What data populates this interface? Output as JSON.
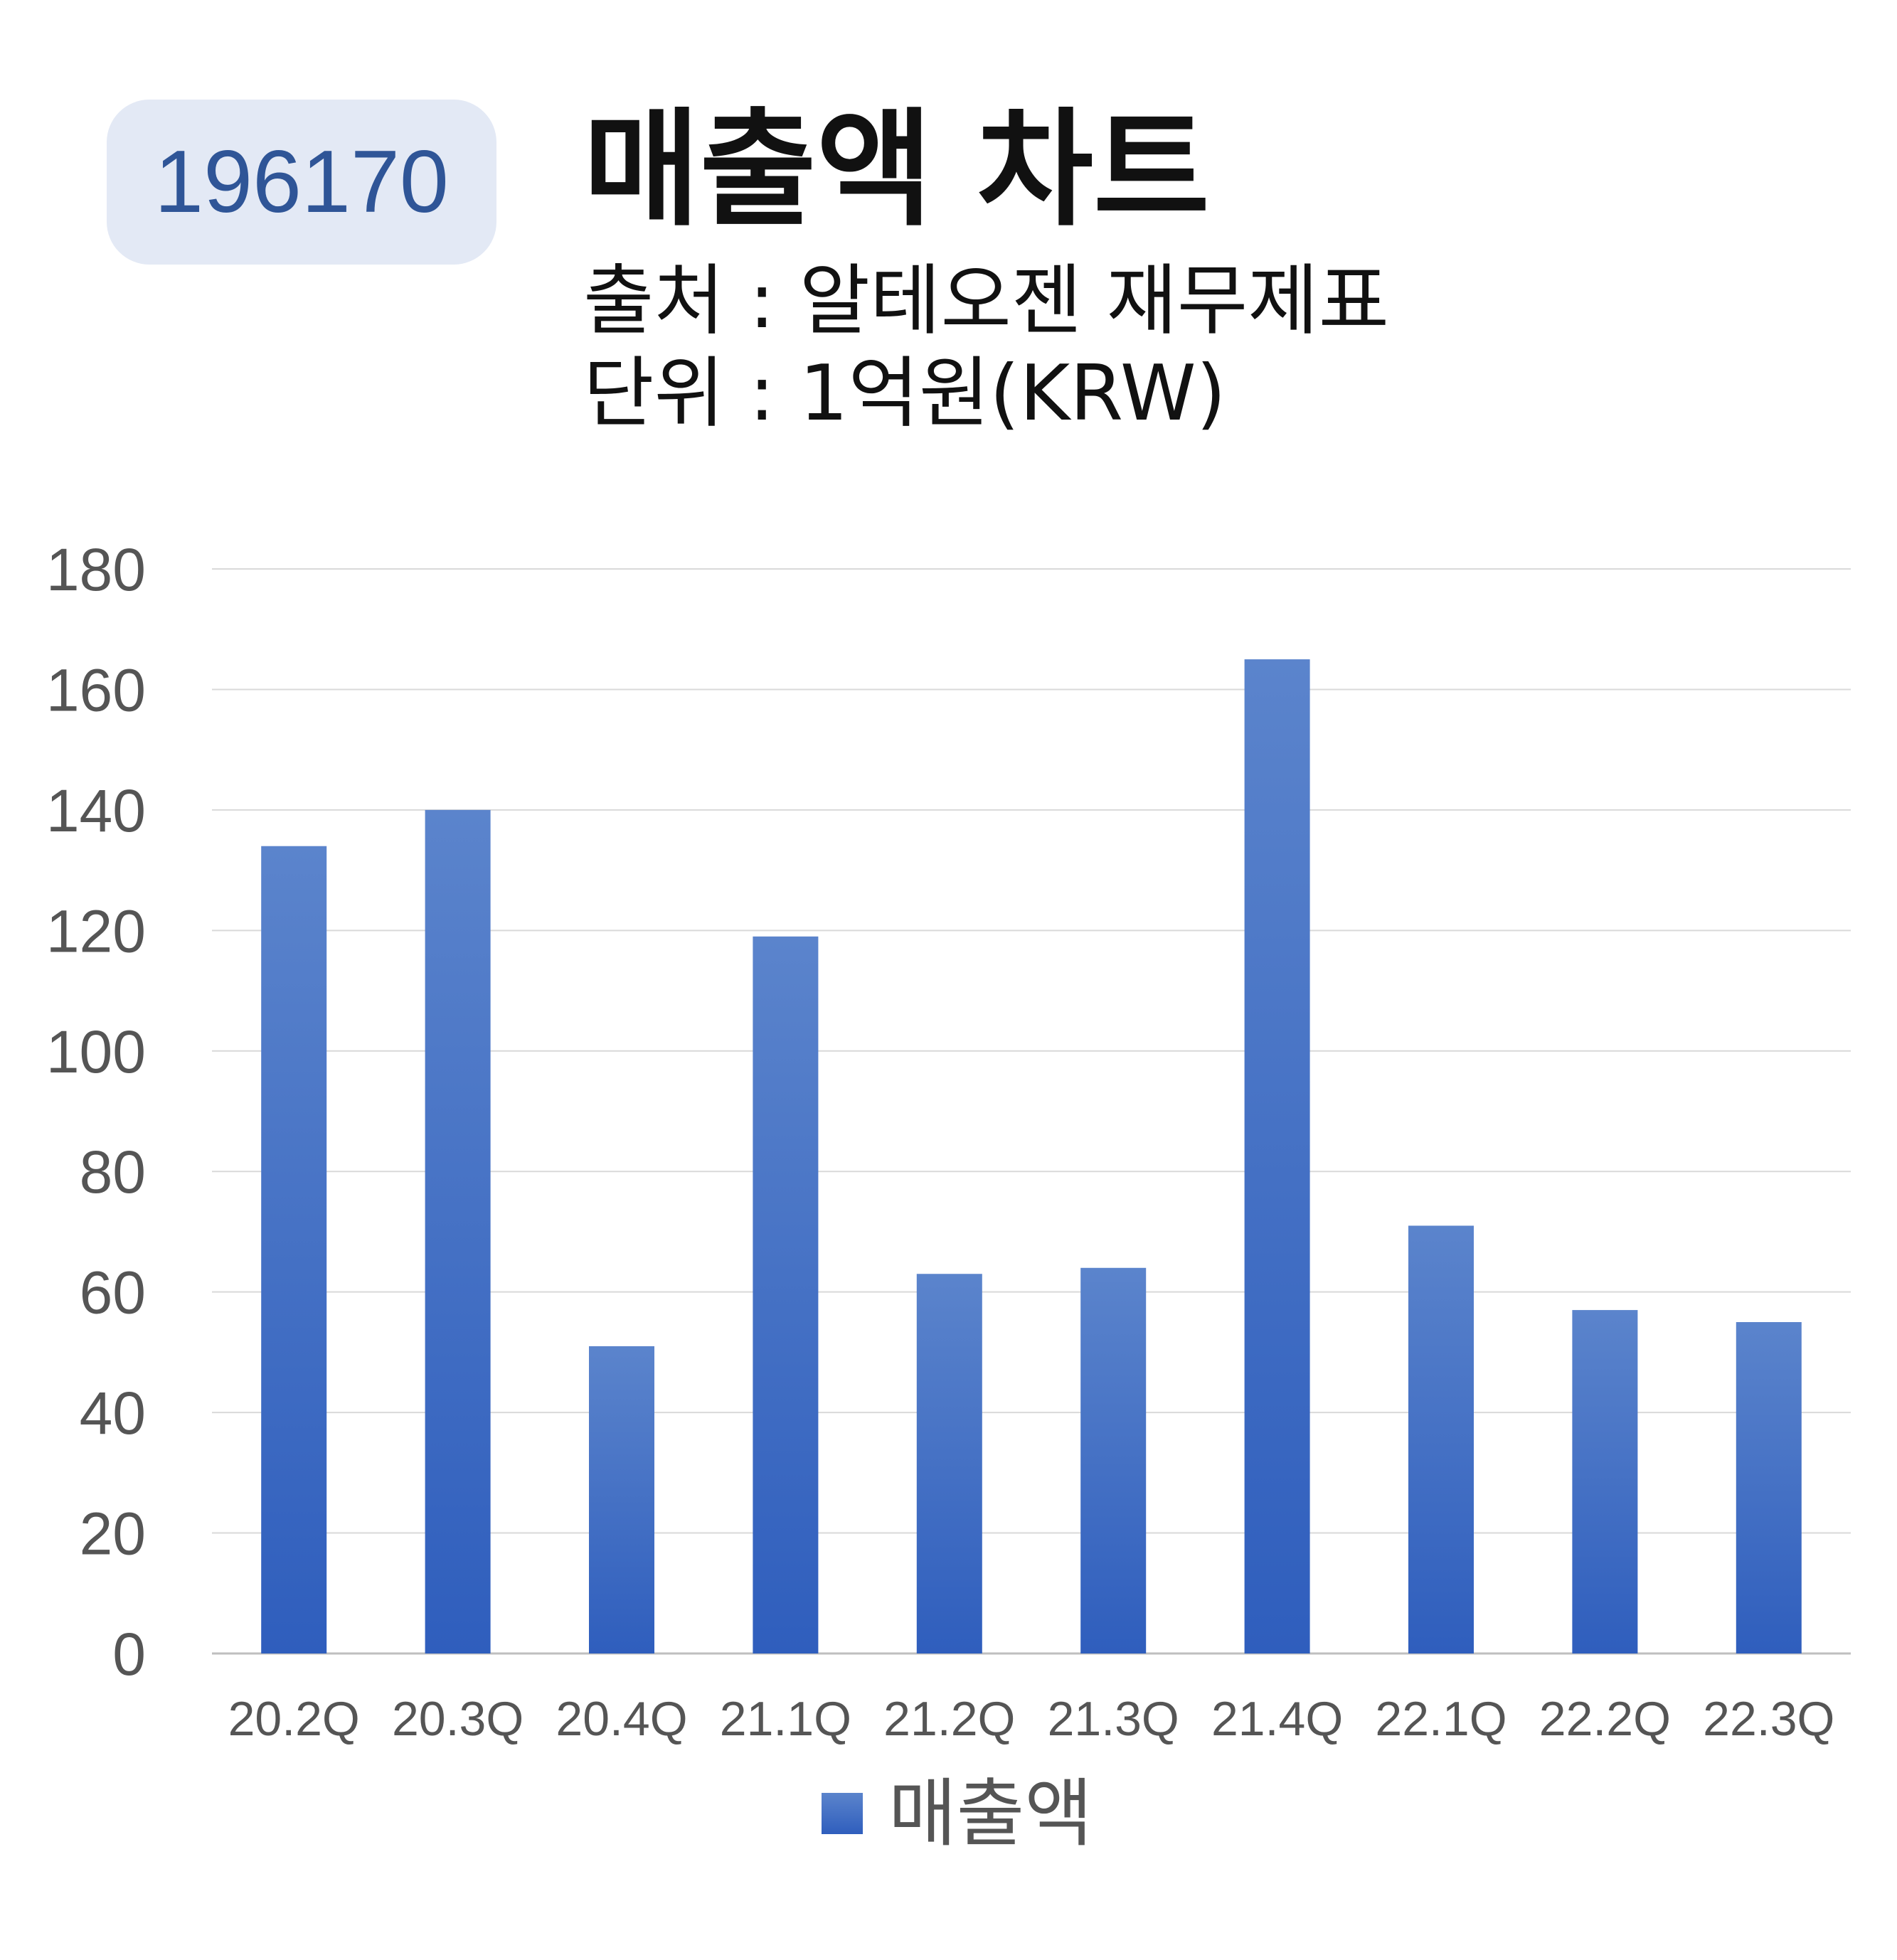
{
  "header": {
    "ticker": "196170",
    "title": "매출액 차트",
    "source": "출처 : 알테오젠 재무제표",
    "unit": "단위 : 1억원(KRW)"
  },
  "chart_data": {
    "type": "bar",
    "categories": [
      "20.2Q",
      "20.3Q",
      "20.4Q",
      "21.1Q",
      "21.2Q",
      "21.3Q",
      "21.4Q",
      "22.1Q",
      "22.2Q",
      "22.3Q"
    ],
    "series": [
      {
        "name": "매출액",
        "values": [
          134,
          140,
          51,
          119,
          63,
          64,
          165,
          71,
          57,
          55
        ]
      }
    ],
    "ylim": [
      0,
      180
    ],
    "yticks": [
      0,
      20,
      40,
      60,
      80,
      100,
      120,
      140,
      160,
      180
    ],
    "grid": true,
    "legend": "bottom",
    "colors": {
      "bar_top": "#5b84cc",
      "bar_bottom": "#2f5ebd",
      "grid": "#d9d9d9",
      "tick_label": "#555555"
    }
  }
}
